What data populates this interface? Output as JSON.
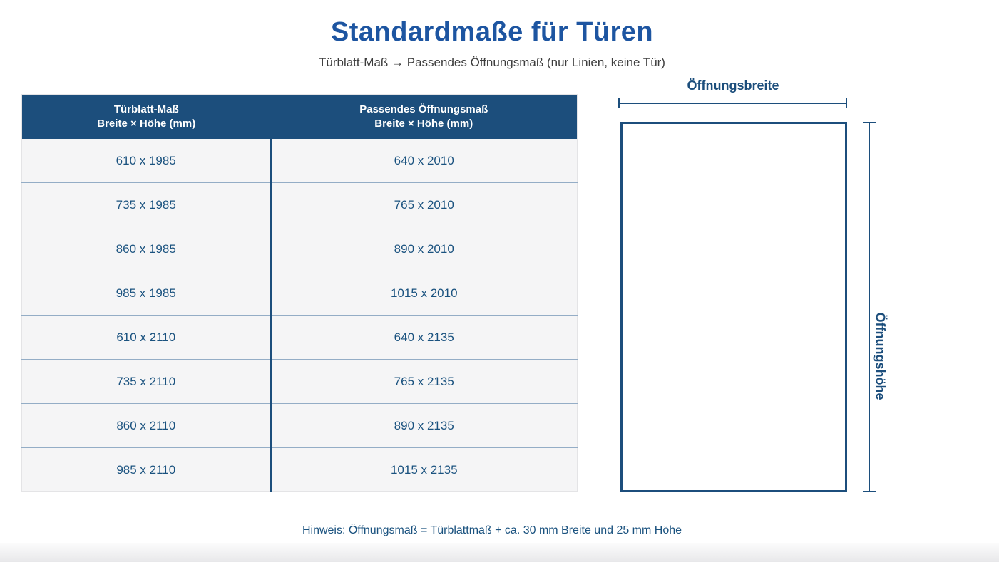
{
  "page": {
    "title": "Standardmaße für Türen",
    "subtitle": "Türblatt-Maß → Passendes Öffnungsmaß (nur Linien, keine Tür)",
    "note": "Hinweis: Öffnungsmaß = Türblattmaß + ca. 30 mm Breite und 25 mm Höhe"
  },
  "colors": {
    "accent_blue": "#1c4e7c",
    "title_blue": "#1d55a1",
    "cell_blue": "#1a527f",
    "subtitle_gray": "#3d3d3d",
    "row_bg": "#f5f5f6",
    "row_line": "#94adc6"
  },
  "table": {
    "columns": [
      {
        "title": "Türblatt-Maß",
        "subtitle": "Breite × Höhe (mm)"
      },
      {
        "title": "Passendes Öffnungsmaß",
        "subtitle": "Breite × Höhe (mm)"
      }
    ],
    "rows": [
      [
        "610 x 1985",
        "640 x 2010"
      ],
      [
        "735 x 1985",
        "765 x 2010"
      ],
      [
        "860 x 1985",
        "890 x 2010"
      ],
      [
        "985 x 1985",
        "1015 x 2010"
      ],
      [
        "610 x 2110",
        "640 x 2135"
      ],
      [
        "735 x 2110",
        "765 x 2135"
      ],
      [
        "860 x 2110",
        "890 x 2135"
      ],
      [
        "985 x 2110",
        "1015 x 2135"
      ]
    ]
  },
  "diagram": {
    "width_label": "Öffnungsbreite",
    "height_label": "Öffnungshöhe"
  }
}
